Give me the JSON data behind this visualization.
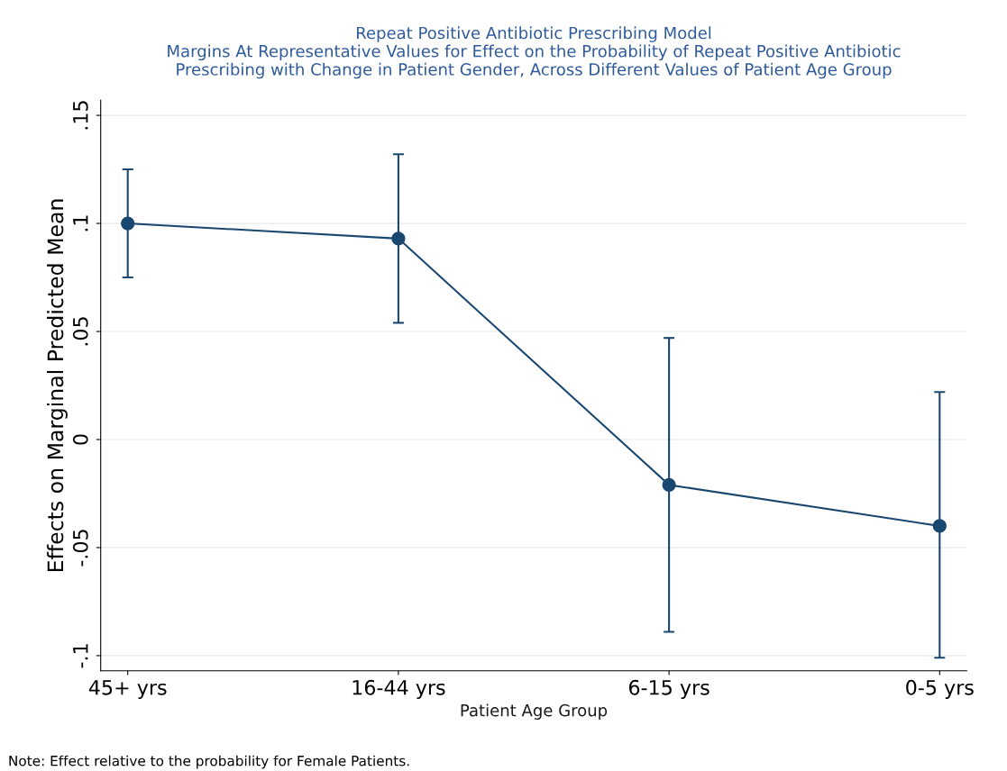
{
  "chart_data": {
    "type": "line",
    "title": "Repeat Positive Antibiotic Prescribing Model\nMargins At Representative Values for Effect on the Probability of Repeat Positive Antibiotic\nPrescribing with Change in Patient Gender, Across Different Values of Patient Age Group",
    "xlabel": "Patient Age Group",
    "ylabel": "Effects on Marginal Predicted Mean",
    "categories": [
      "45+ yrs",
      "16-44 yrs",
      "6-15 yrs",
      "0-5 yrs"
    ],
    "series": [
      {
        "color": "#1a476f",
        "values": [
          0.1,
          0.093,
          -0.021,
          -0.04
        ],
        "errors": [
          [
            0.075,
            0.125
          ],
          [
            0.054,
            0.132
          ],
          [
            -0.089,
            0.047
          ],
          [
            -0.101,
            0.022
          ]
        ]
      }
    ],
    "ylim": [
      -0.107,
      0.157
    ],
    "yticks": [
      {
        "value": -0.1,
        "label": "-.1"
      },
      {
        "value": -0.05,
        "label": "-.05"
      },
      {
        "value": 0,
        "label": "0"
      },
      {
        "value": 0.05,
        "label": ".05"
      },
      {
        "value": 0.1,
        "label": ".1"
      },
      {
        "value": 0.15,
        "label": ".15"
      }
    ],
    "grid": "y",
    "marker": "circle",
    "line_style": "solid",
    "legend": false,
    "annotations": [
      "Note: Effect relative to the probability for Female Patients."
    ]
  }
}
